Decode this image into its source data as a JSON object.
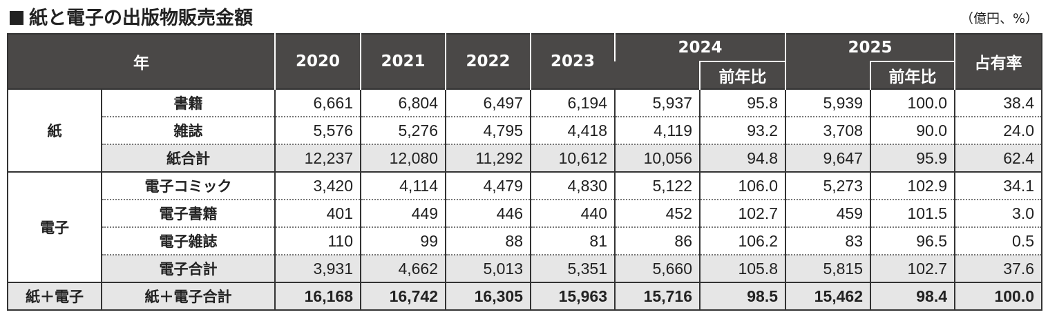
{
  "title": "紙と電子の出版物販売金額",
  "unit": "（億円、%）",
  "header": {
    "year_label": "年",
    "years": [
      "2020",
      "2021",
      "2022",
      "2023",
      "2024",
      "2025"
    ],
    "yoy_label": "前年比",
    "share_label": "占有率"
  },
  "groups": [
    {
      "name": "紙",
      "rows": [
        {
          "label": "書籍",
          "values": [
            "6,661",
            "6,804",
            "6,497",
            "6,194",
            "5,937",
            "95.8",
            "5,939",
            "100.0",
            "38.4"
          ]
        },
        {
          "label": "雑誌",
          "values": [
            "5,576",
            "5,276",
            "4,795",
            "4,418",
            "4,119",
            "93.2",
            "3,708",
            "90.0",
            "24.0"
          ]
        },
        {
          "label": "紙合計",
          "values": [
            "12,237",
            "12,080",
            "11,292",
            "10,612",
            "10,056",
            "94.8",
            "9,647",
            "95.9",
            "62.4"
          ],
          "subtotal": true
        }
      ]
    },
    {
      "name": "電子",
      "rows": [
        {
          "label": "電子コミック",
          "values": [
            "3,420",
            "4,114",
            "4,479",
            "4,830",
            "5,122",
            "106.0",
            "5,273",
            "102.9",
            "34.1"
          ]
        },
        {
          "label": "電子書籍",
          "values": [
            "401",
            "449",
            "446",
            "440",
            "452",
            "102.7",
            "459",
            "101.5",
            "3.0"
          ]
        },
        {
          "label": "電子雑誌",
          "values": [
            "110",
            "99",
            "88",
            "81",
            "86",
            "106.2",
            "83",
            "96.5",
            "0.5"
          ]
        },
        {
          "label": "電子合計",
          "values": [
            "3,931",
            "4,662",
            "5,013",
            "5,351",
            "5,660",
            "105.8",
            "5,815",
            "102.7",
            "37.6"
          ],
          "subtotal": true
        }
      ]
    },
    {
      "name": "紙＋電子",
      "rows": [
        {
          "label": "紙＋電子合計",
          "values": [
            "16,168",
            "16,742",
            "16,305",
            "15,963",
            "15,716",
            "98.5",
            "15,462",
            "98.4",
            "100.0"
          ],
          "total": true
        }
      ]
    }
  ]
}
